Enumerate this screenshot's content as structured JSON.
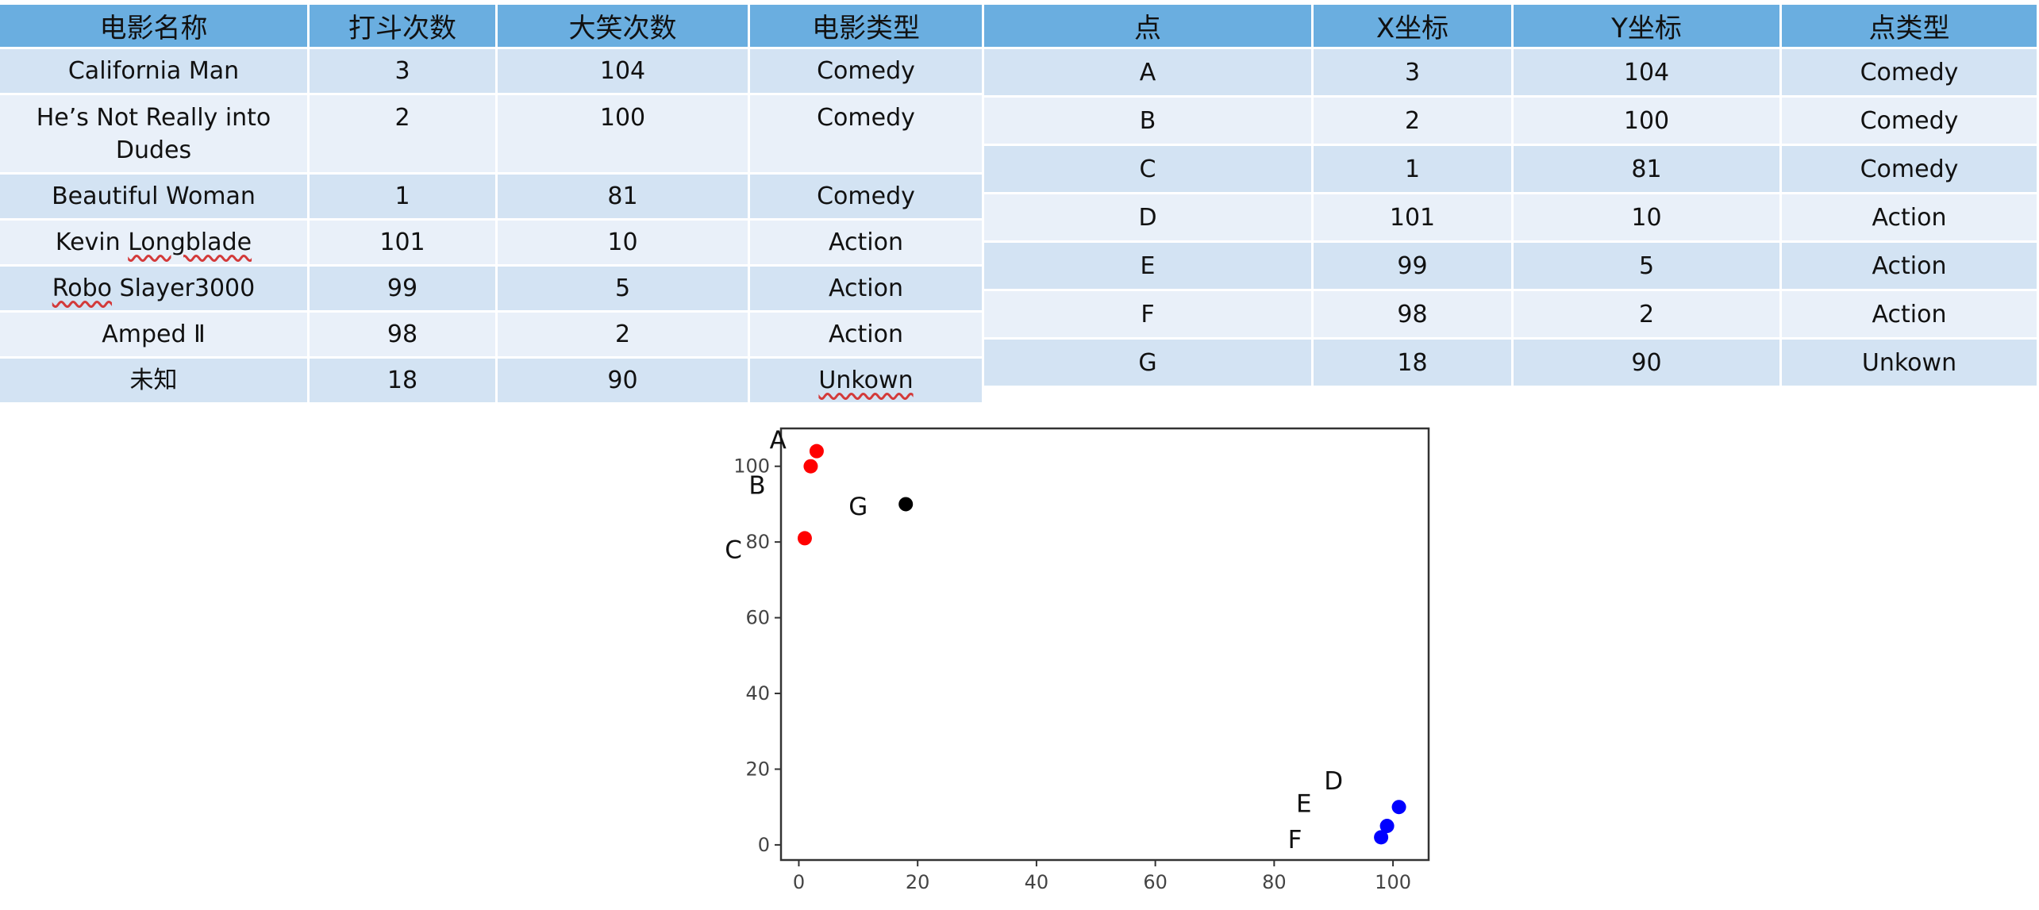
{
  "movie_table": {
    "headers": [
      "电影名称",
      "打斗次数",
      "大笑次数",
      "电影类型"
    ],
    "rows": [
      [
        "California Man",
        "3",
        "104",
        "Comedy"
      ],
      [
        "He’s Not Really into Dudes",
        "2",
        "100",
        "Comedy"
      ],
      [
        "Beautiful Woman",
        "1",
        "81",
        "Comedy"
      ],
      [
        "Kevin Longblade",
        "101",
        "10",
        "Action"
      ],
      [
        "Robo Slayer3000",
        "99",
        "5",
        "Action"
      ],
      [
        "Amped Ⅱ",
        "98",
        "2",
        "Action"
      ],
      [
        "未知",
        "18",
        "90",
        "Unkown"
      ]
    ]
  },
  "point_table": {
    "headers": [
      "点",
      "X坐标",
      "Y坐标",
      "点类型"
    ],
    "rows": [
      [
        "A",
        "3",
        "104",
        "Comedy"
      ],
      [
        "B",
        "2",
        "100",
        "Comedy"
      ],
      [
        "C",
        "1",
        "81",
        "Comedy"
      ],
      [
        "D",
        "101",
        "10",
        "Action"
      ],
      [
        "E",
        "99",
        "5",
        "Action"
      ],
      [
        "F",
        "98",
        "2",
        "Action"
      ],
      [
        "G",
        "18",
        "90",
        "Unkown"
      ]
    ]
  },
  "colors": {
    "header_bg": "#6aaee0",
    "row_odd_bg": "#d3e3f3",
    "row_even_bg": "#e9f0f9",
    "comedy": "#ff0000",
    "action": "#0000ff",
    "unknown": "#000000"
  },
  "chart_data": {
    "type": "scatter",
    "title": "",
    "xlabel": "",
    "ylabel": "",
    "xlim": [
      -3,
      106
    ],
    "ylim": [
      -4,
      110
    ],
    "xticks": [
      0,
      20,
      40,
      60,
      80,
      100
    ],
    "yticks": [
      0,
      20,
      40,
      60,
      80,
      100
    ],
    "grid": false,
    "legend": "none",
    "points": [
      {
        "x": 3,
        "y": 104,
        "color": "#ff0000"
      },
      {
        "x": 2,
        "y": 100,
        "color": "#ff0000"
      },
      {
        "x": 1,
        "y": 81,
        "color": "#ff0000"
      },
      {
        "x": 101,
        "y": 10,
        "color": "#0000ff"
      },
      {
        "x": 99,
        "y": 5,
        "color": "#0000ff"
      },
      {
        "x": 98,
        "y": 2,
        "color": "#0000ff"
      },
      {
        "x": 18,
        "y": 90,
        "color": "#000000"
      }
    ],
    "annotations": [
      {
        "text": "A",
        "x": -3.5,
        "y": 107
      },
      {
        "text": "B",
        "x": -7,
        "y": 95
      },
      {
        "text": "C",
        "x": -11,
        "y": 78
      },
      {
        "text": "D",
        "x": 90,
        "y": 17
      },
      {
        "text": "E",
        "x": 85,
        "y": 11
      },
      {
        "text": "F",
        "x": 83.5,
        "y": 1.5
      },
      {
        "text": "G",
        "x": 10,
        "y": 89.5
      }
    ]
  }
}
